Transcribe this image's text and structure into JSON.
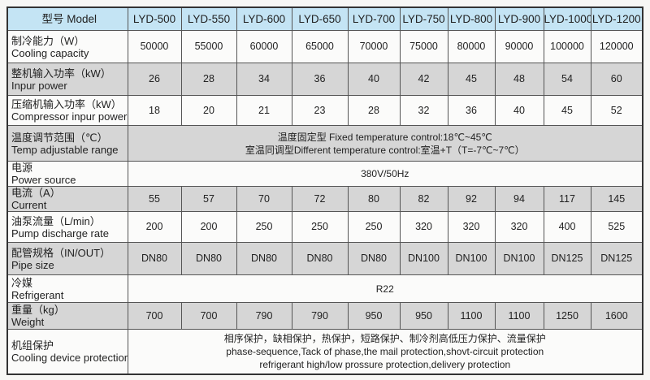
{
  "header": {
    "label": "型号 Model",
    "models": [
      "LYD-500",
      "LYD-550",
      "LYD-600",
      "LYD-650",
      "LYD-700",
      "LYD-750",
      "LYD-800",
      "LYD-900",
      "LYD-1000",
      "LYD-1200"
    ]
  },
  "rows": [
    {
      "cn": "制冷能力（W）",
      "en": "Cooling capacity",
      "values": [
        "50000",
        "55000",
        "60000",
        "65000",
        "70000",
        "75000",
        "80000",
        "90000",
        "100000",
        "120000"
      ]
    },
    {
      "cn": "整机输入功率（kW）",
      "en": "Inpur power",
      "values": [
        "26",
        "28",
        "34",
        "36",
        "40",
        "42",
        "45",
        "48",
        "54",
        "60"
      ]
    },
    {
      "cn": "压缩机输入功率（kW）",
      "en": "Compressor inpur power",
      "values": [
        "18",
        "20",
        "21",
        "23",
        "28",
        "32",
        "36",
        "40",
        "45",
        "52"
      ]
    },
    {
      "cn": "温度调节范围（℃）",
      "en": "Temp adjustable range",
      "lines": [
        "温度固定型 Fixed temperature control:18℃~45℃",
        "室温同调型Different temperature control:室温+T（T=-7℃~7℃）"
      ]
    },
    {
      "cn": "电源",
      "en": "Power source",
      "lines": [
        "380V/50Hz"
      ]
    },
    {
      "cn": "电流（A）",
      "en": "Current",
      "values": [
        "55",
        "57",
        "70",
        "72",
        "80",
        "82",
        "92",
        "94",
        "117",
        "145"
      ]
    },
    {
      "cn": "油泵流量（L/min）",
      "en": "Pump discharge rate",
      "values": [
        "200",
        "200",
        "250",
        "250",
        "250",
        "320",
        "320",
        "320",
        "400",
        "525"
      ]
    },
    {
      "cn": "配管规格（IN/OUT）",
      "en": "Pipe size",
      "values": [
        "DN80",
        "DN80",
        "DN80",
        "DN80",
        "DN80",
        "DN100",
        "DN100",
        "DN100",
        "DN125",
        "DN125"
      ]
    },
    {
      "cn": "冷媒",
      "en": "Refrigerant",
      "lines": [
        "R22"
      ]
    },
    {
      "cn": "重量（kg）",
      "en": "Weight",
      "values": [
        "700",
        "700",
        "790",
        "790",
        "950",
        "950",
        "1100",
        "1100",
        "1250",
        "1600"
      ]
    },
    {
      "cn": "机组保护",
      "en": "Cooling device protection",
      "lines": [
        "相序保护，缺相保护，热保护，短路保护、制冷剂高低压力保护、流量保护",
        "phase-sequence,Tack of phase,the mail protection,shovt-circuit protection",
        "refrigerant high/low prossure protection,delivery protection"
      ]
    }
  ],
  "colors": {
    "header_bg": "#c4e4f4",
    "gray_row": "#d6d6d6",
    "white_row": "#fbfbfa"
  }
}
